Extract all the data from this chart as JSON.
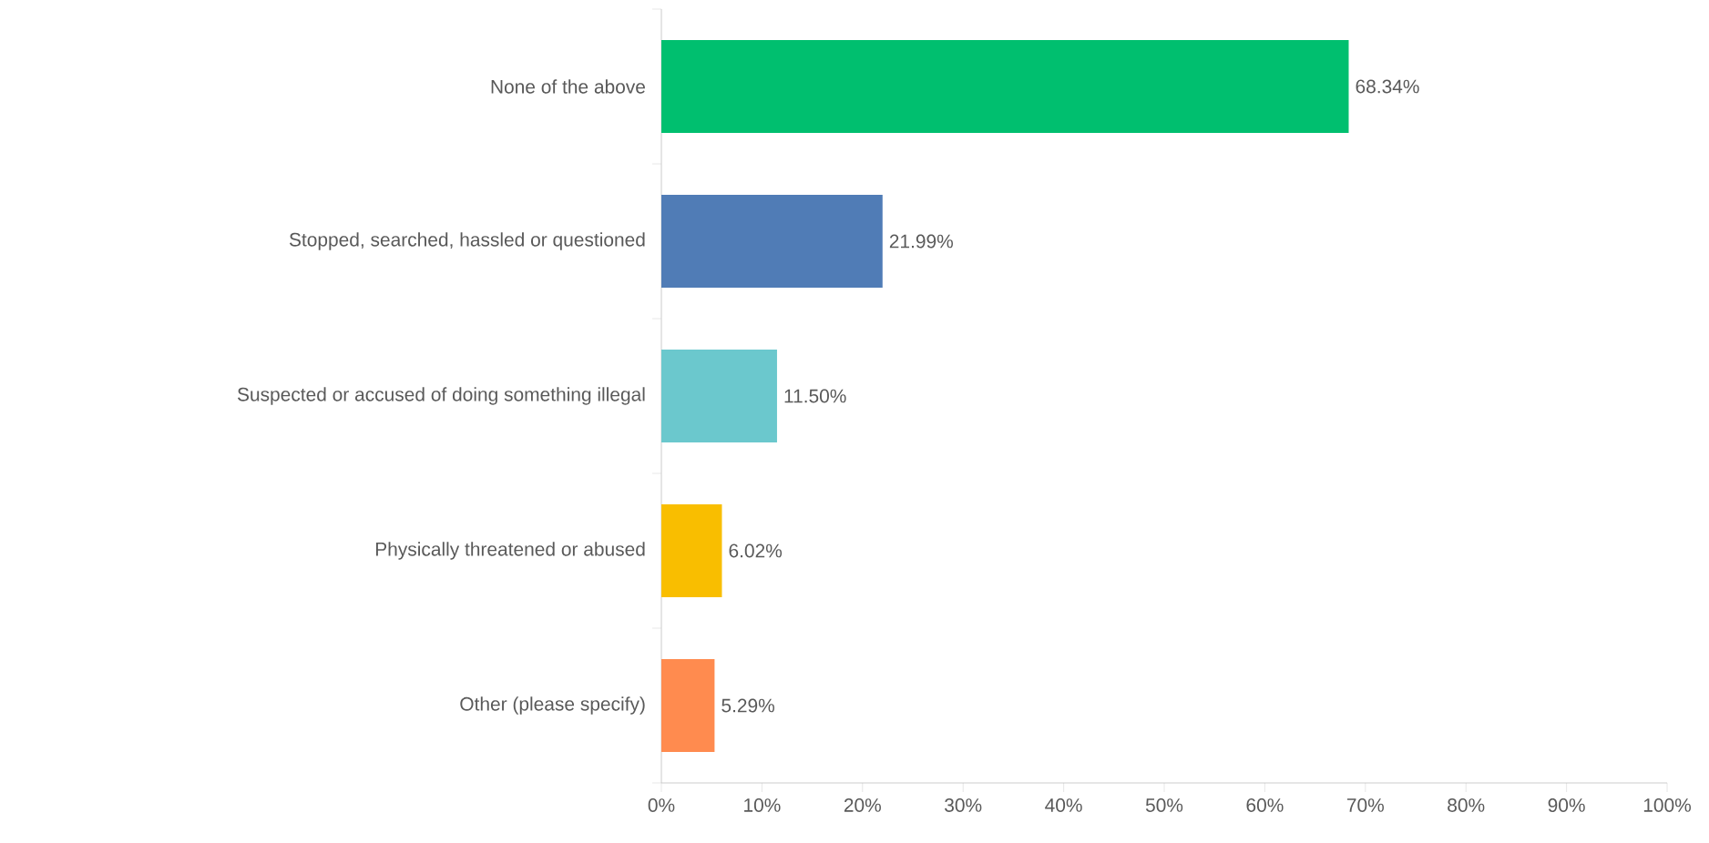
{
  "chart_data": {
    "type": "bar",
    "orientation": "horizontal",
    "categories": [
      "None of the above",
      "Stopped, searched, hassled or questioned",
      "Suspected or accused of doing something illegal",
      "Physically threatened or abused",
      "Other (please specify)"
    ],
    "values": [
      68.34,
      21.99,
      11.5,
      6.02,
      5.29
    ],
    "value_labels": [
      "68.34%",
      "21.99%",
      "11.50%",
      "6.02%",
      "5.29%"
    ],
    "colors": [
      "#00bf6f",
      "#507cb6",
      "#6bc8cd",
      "#f9be00",
      "#ff8b4f"
    ],
    "xlim": [
      0,
      100
    ],
    "xticks": [
      {
        "value": 0,
        "label": "0%"
      },
      {
        "value": 10,
        "label": "10%"
      },
      {
        "value": 20,
        "label": "20%"
      },
      {
        "value": 30,
        "label": "30%"
      },
      {
        "value": 40,
        "label": "40%"
      },
      {
        "value": 50,
        "label": "50%"
      },
      {
        "value": 60,
        "label": "60%"
      },
      {
        "value": 70,
        "label": "70%"
      },
      {
        "value": 80,
        "label": "80%"
      },
      {
        "value": 90,
        "label": "90%"
      },
      {
        "value": 100,
        "label": "100%"
      }
    ],
    "grid": false
  }
}
